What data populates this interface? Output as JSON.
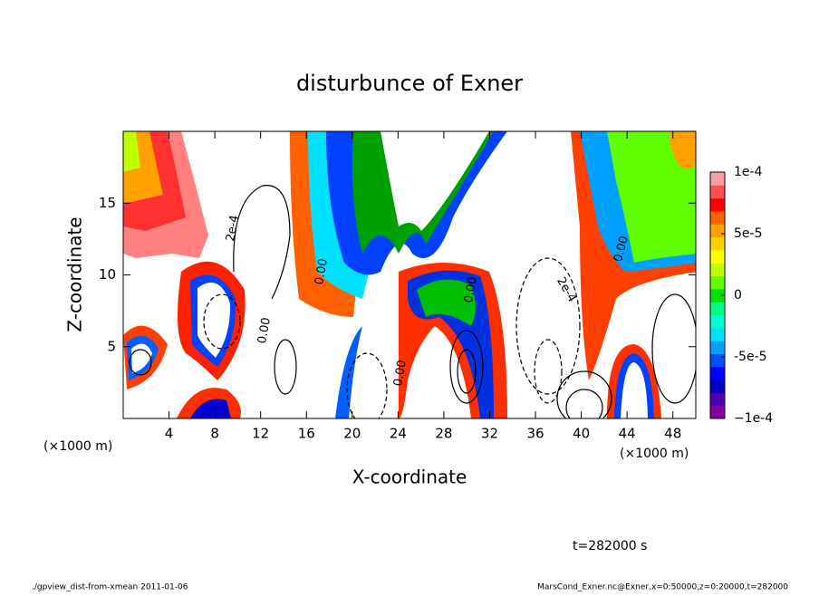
{
  "chart_data": {
    "type": "contour",
    "title": "disturbunce of Exner",
    "xlabel": "X-coordinate",
    "ylabel": "Z-coordinate",
    "xunit": "(×1000 m)",
    "xunit_right": "(×1000 m)",
    "xlim": [
      0,
      50
    ],
    "xticks": [
      4,
      8,
      12,
      16,
      20,
      24,
      28,
      32,
      36,
      40,
      44,
      48
    ],
    "ylim": [
      0,
      20
    ],
    "yticks": [
      5,
      10,
      15
    ],
    "contour_labels": [
      "2e-4",
      "0.00",
      "0.00",
      "0.00",
      "2e-4",
      "0.00",
      "0.00"
    ],
    "colorbar": {
      "lim": [
        -0.0001,
        0.0001
      ],
      "ticks": [
        {
          "value": 0.0001,
          "label": "1e-4"
        },
        {
          "value": 5e-05,
          "label": "5e-5"
        },
        0,
        {
          "value": -5e-05,
          "label": "-5e-5"
        },
        {
          "value": -0.0001,
          "label": "−1e-4"
        }
      ],
      "colors": [
        "#8000a0",
        "#5000b0",
        "#0000c8",
        "#0000ff",
        "#0050ff",
        "#00a0ff",
        "#00e0ff",
        "#00ffd0",
        "#00ff80",
        "#00e000",
        "#60ff00",
        "#c0ff00",
        "#ffff00",
        "#ffd000",
        "#ffa000",
        "#ff6000",
        "#ff0000",
        "#ff5050",
        "#f8a0a0"
      ]
    },
    "time_label": "t=282000 s",
    "footer_left": "./gpview_dist-from-xmean  2011-01-06",
    "footer_right": "MarsCond_Exner.nc@Exner,x=0:50000,z=0:20000,t=282000"
  }
}
